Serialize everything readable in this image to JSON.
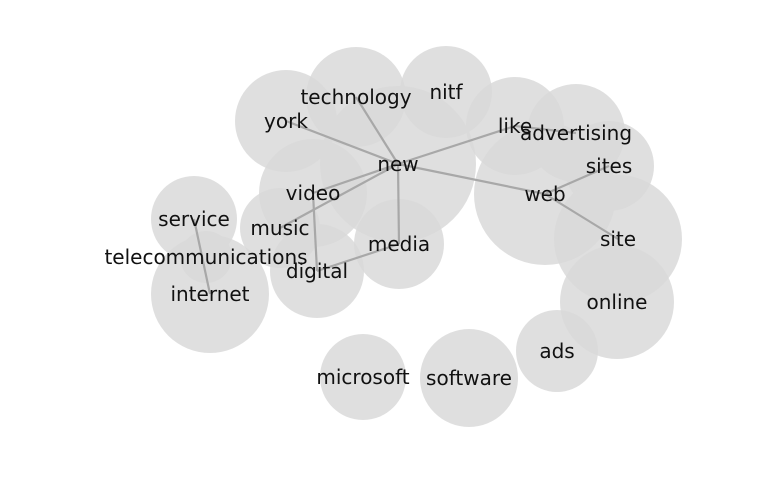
{
  "graph": {
    "nodes": [
      {
        "id": "technology",
        "label": "technology"
      },
      {
        "id": "nitf",
        "label": "nitf"
      },
      {
        "id": "york",
        "label": "york"
      },
      {
        "id": "like",
        "label": "like"
      },
      {
        "id": "advertising",
        "label": "advertising"
      },
      {
        "id": "new",
        "label": "new"
      },
      {
        "id": "sites",
        "label": "sites"
      },
      {
        "id": "video",
        "label": "video"
      },
      {
        "id": "web",
        "label": "web"
      },
      {
        "id": "service",
        "label": "service"
      },
      {
        "id": "music",
        "label": "music"
      },
      {
        "id": "site",
        "label": "site"
      },
      {
        "id": "media",
        "label": "media"
      },
      {
        "id": "telecommunications",
        "label": "telecommunications"
      },
      {
        "id": "digital",
        "label": "digital"
      },
      {
        "id": "internet",
        "label": "internet"
      },
      {
        "id": "online",
        "label": "online"
      },
      {
        "id": "ads",
        "label": "ads"
      },
      {
        "id": "microsoft",
        "label": "microsoft"
      },
      {
        "id": "software",
        "label": "software"
      }
    ],
    "edges": [
      [
        "new",
        "york"
      ],
      [
        "new",
        "technology"
      ],
      [
        "new",
        "video"
      ],
      [
        "new",
        "media"
      ],
      [
        "new",
        "web"
      ],
      [
        "new",
        "like"
      ],
      [
        "new",
        "music"
      ],
      [
        "video",
        "digital"
      ],
      [
        "media",
        "digital"
      ],
      [
        "web",
        "site"
      ],
      [
        "web",
        "sites"
      ],
      [
        "like",
        "advertising"
      ],
      [
        "service",
        "internet"
      ]
    ]
  }
}
